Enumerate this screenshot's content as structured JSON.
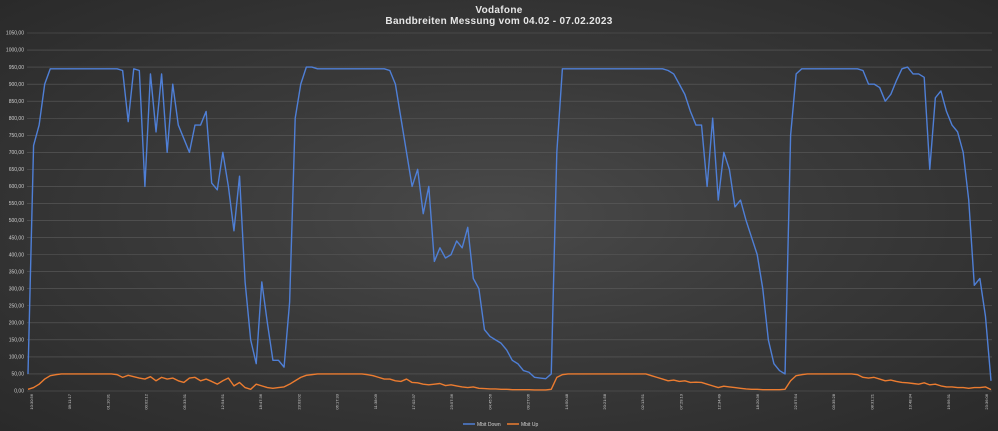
{
  "chart_data": {
    "type": "line",
    "title": "Vodafone",
    "subtitle": "Bandbreiten  Messung  vom 04.02 - 07.02.2023",
    "xlabel": "",
    "ylabel": "",
    "ylim": [
      0,
      1050
    ],
    "yticks": [
      "0,00",
      "50,00",
      "100,00",
      "150,00",
      "200,00",
      "250,00",
      "300,00",
      "350,00",
      "400,00",
      "450,00",
      "500,00",
      "550,00",
      "600,00",
      "650,00",
      "700,00",
      "750,00",
      "800,00",
      "850,00",
      "900,00",
      "950,00",
      "1000,00",
      "1050,00"
    ],
    "grid": true,
    "legend": "bottom-center",
    "x_tick_samples": [
      "10:30:56",
      "09:11:17",
      "01:10:31",
      "00:02:12",
      "05:33:31",
      "12:54:51",
      "18:47:36",
      "23:03:02",
      "06:17:33",
      "11:38:09",
      "17:02:37",
      "23:57:36",
      "04:45:56",
      "09:27:06",
      "14:50:48",
      "20:21:58",
      "02:13:51",
      "07:29:13",
      "12:34:49",
      "18:20:36",
      "22:57:54",
      "03:35:28",
      "08:31:21",
      "13:48:34",
      "19:56:31",
      "23:36:06"
    ],
    "colors": {
      "down": "#4f7fd6",
      "up": "#ec7c30",
      "grid": "#5c5c5c"
    },
    "series": [
      {
        "name": "Mbit Down",
        "values": [
          50,
          720,
          780,
          900,
          945,
          945,
          945,
          945,
          945,
          945,
          945,
          945,
          945,
          945,
          945,
          945,
          945,
          940,
          790,
          945,
          940,
          600,
          930,
          760,
          930,
          700,
          900,
          780,
          740,
          700,
          780,
          780,
          820,
          610,
          590,
          700,
          600,
          470,
          630,
          320,
          150,
          80,
          320,
          200,
          90,
          90,
          70,
          260,
          800,
          900,
          950,
          950,
          945,
          945,
          945,
          945,
          945,
          945,
          945,
          945,
          945,
          945,
          945,
          945,
          945,
          940,
          900,
          800,
          700,
          600,
          650,
          520,
          600,
          380,
          420,
          390,
          400,
          440,
          420,
          480,
          330,
          300,
          180,
          160,
          150,
          140,
          120,
          90,
          80,
          60,
          55,
          40,
          38,
          36,
          50,
          700,
          945,
          945,
          945,
          945,
          945,
          945,
          945,
          945,
          945,
          945,
          945,
          945,
          945,
          945,
          945,
          945,
          945,
          945,
          945,
          940,
          930,
          900,
          870,
          820,
          780,
          780,
          600,
          800,
          560,
          700,
          650,
          540,
          560,
          500,
          450,
          400,
          300,
          150,
          80,
          60,
          50,
          750,
          930,
          945,
          945,
          945,
          945,
          945,
          945,
          945,
          945,
          945,
          945,
          945,
          940,
          900,
          900,
          890,
          850,
          870,
          910,
          945,
          950,
          930,
          930,
          920,
          650,
          860,
          880,
          820,
          780,
          760,
          700,
          560,
          310,
          330,
          220,
          30
        ]
      },
      {
        "name": "Mbit Up",
        "values": [
          5,
          10,
          20,
          35,
          45,
          48,
          50,
          50,
          50,
          50,
          50,
          50,
          50,
          50,
          50,
          50,
          48,
          40,
          46,
          42,
          38,
          35,
          42,
          30,
          40,
          35,
          38,
          30,
          25,
          38,
          40,
          30,
          35,
          28,
          20,
          30,
          38,
          15,
          25,
          10,
          5,
          20,
          15,
          10,
          8,
          10,
          12,
          20,
          30,
          40,
          46,
          48,
          50,
          50,
          50,
          50,
          50,
          50,
          50,
          50,
          50,
          48,
          45,
          40,
          35,
          35,
          30,
          28,
          35,
          25,
          24,
          20,
          18,
          20,
          22,
          16,
          18,
          15,
          12,
          10,
          12,
          8,
          7,
          6,
          6,
          5,
          5,
          4,
          4,
          4,
          4,
          3,
          3,
          3,
          5,
          40,
          48,
          50,
          50,
          50,
          50,
          50,
          50,
          50,
          50,
          50,
          50,
          50,
          50,
          50,
          50,
          50,
          45,
          40,
          35,
          30,
          32,
          28,
          30,
          25,
          26,
          25,
          20,
          15,
          10,
          14,
          12,
          10,
          8,
          6,
          5,
          5,
          4,
          4,
          4,
          4,
          5,
          30,
          45,
          48,
          50,
          50,
          50,
          50,
          50,
          50,
          50,
          50,
          50,
          48,
          40,
          38,
          40,
          35,
          30,
          32,
          28,
          25,
          24,
          22,
          20,
          24,
          18,
          20,
          15,
          12,
          12,
          10,
          10,
          8,
          10,
          10,
          12,
          4
        ]
      }
    ]
  }
}
